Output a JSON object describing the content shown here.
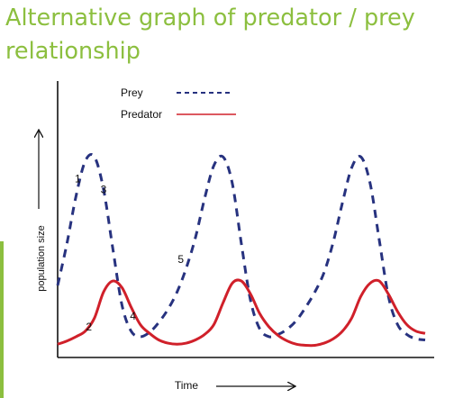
{
  "slide": {
    "title": "Alternative graph of predator / prey relationship",
    "title_color": "#8cbf3f",
    "accent_color": "#8cbf3f"
  },
  "chart_data": {
    "type": "line",
    "title": "",
    "xlabel": "Time",
    "ylabel": "population size",
    "xlim": [
      0,
      10
    ],
    "ylim": [
      0,
      10
    ],
    "grid": false,
    "legend_position": "top",
    "series": [
      {
        "name": "Prey",
        "style": "dashed",
        "color": "#27327f",
        "x": [
          0,
          0.25,
          0.5,
          0.75,
          1.0,
          1.25,
          1.5,
          1.75,
          2.0,
          2.25,
          2.5,
          2.75,
          3.0,
          3.25,
          3.5,
          3.75,
          4.0,
          4.25,
          4.5,
          4.75,
          5.0,
          5.25,
          5.5,
          5.75,
          6.0,
          6.25,
          6.5,
          6.75,
          7.0,
          7.25,
          7.5,
          7.75,
          8.0,
          8.25,
          8.5,
          8.75,
          9.0,
          9.25,
          9.5,
          9.75,
          10.0
        ],
        "y": [
          3.1,
          5.0,
          7.2,
          8.8,
          9.0,
          7.5,
          4.8,
          2.2,
          1.0,
          0.75,
          0.95,
          1.4,
          2.0,
          2.8,
          3.9,
          5.3,
          7.1,
          8.6,
          9.0,
          7.8,
          5.0,
          2.4,
          1.1,
          0.75,
          0.85,
          1.1,
          1.5,
          2.1,
          2.8,
          3.7,
          5.1,
          6.9,
          8.5,
          9.0,
          7.8,
          5.2,
          2.6,
          1.3,
          0.85,
          0.65,
          0.6
        ]
      },
      {
        "name": "Predator",
        "style": "solid",
        "color": "#d0202a",
        "x": [
          0,
          0.25,
          0.5,
          0.75,
          1.0,
          1.25,
          1.5,
          1.75,
          2.0,
          2.25,
          2.5,
          2.75,
          3.0,
          3.25,
          3.5,
          3.75,
          4.0,
          4.25,
          4.5,
          4.75,
          5.0,
          5.25,
          5.5,
          5.75,
          6.0,
          6.25,
          6.5,
          6.75,
          7.0,
          7.25,
          7.5,
          7.75,
          8.0,
          8.25,
          8.5,
          8.75,
          9.0,
          9.25,
          9.5,
          9.75,
          10.0
        ],
        "y": [
          0.4,
          0.55,
          0.75,
          1.0,
          1.6,
          2.8,
          3.3,
          3.0,
          2.1,
          1.3,
          0.9,
          0.6,
          0.45,
          0.4,
          0.45,
          0.6,
          0.85,
          1.3,
          2.3,
          3.2,
          3.3,
          2.7,
          1.8,
          1.2,
          0.8,
          0.55,
          0.4,
          0.35,
          0.35,
          0.45,
          0.65,
          1.0,
          1.6,
          2.6,
          3.2,
          3.3,
          2.7,
          1.9,
          1.3,
          1.0,
          0.9
        ]
      }
    ],
    "annotations": [
      {
        "text": "1",
        "x": 0.55,
        "y": 8.0
      },
      {
        "text": "3",
        "x": 1.25,
        "y": 7.5
      },
      {
        "text": "5",
        "x": 3.35,
        "y": 4.3
      },
      {
        "text": "2",
        "x": 0.85,
        "y": 1.2
      },
      {
        "text": "4",
        "x": 2.05,
        "y": 1.7
      }
    ]
  }
}
